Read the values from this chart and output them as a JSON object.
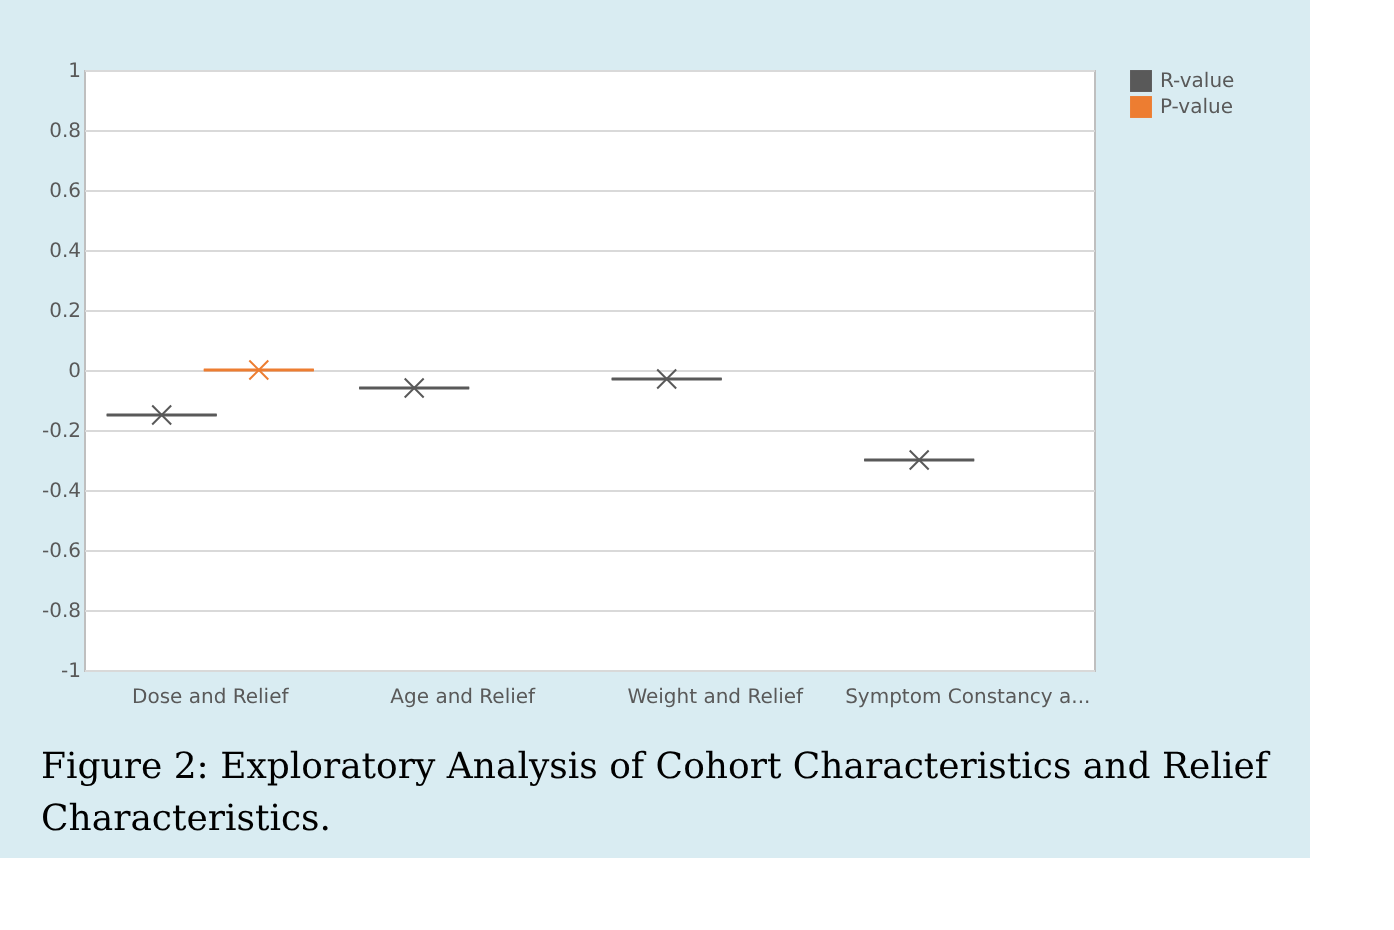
{
  "chart_data": {
    "type": "box",
    "categories": [
      "Dose and Relief",
      "Age and Relief",
      "Weight and Relief",
      "Symptom Constancy a..."
    ],
    "series": [
      {
        "name": "R-value",
        "color": "#595959",
        "boxes": [
          {
            "low": -0.15,
            "q1": -0.15,
            "median": -0.15,
            "q3": -0.15,
            "high": -0.15,
            "mean": -0.15
          },
          {
            "low": -0.06,
            "q1": -0.06,
            "median": -0.06,
            "q3": -0.06,
            "high": -0.06,
            "mean": -0.06
          },
          {
            "low": -0.03,
            "q1": -0.03,
            "median": -0.03,
            "q3": -0.03,
            "high": -0.03,
            "mean": -0.03
          },
          {
            "low": -0.3,
            "q1": -0.3,
            "median": -0.3,
            "q3": -0.3,
            "high": -0.3,
            "mean": -0.3
          }
        ]
      },
      {
        "name": "P-value",
        "color": "#ed7d31",
        "boxes": [
          {
            "low": 0,
            "q1": 0,
            "median": 0,
            "q3": 0,
            "high": 0,
            "mean": 0
          },
          null,
          null,
          null
        ]
      }
    ],
    "ylim": [
      -1,
      1
    ],
    "yticks": [
      -1,
      -0.8,
      -0.6,
      -0.4,
      -0.2,
      0,
      0.2,
      0.4,
      0.6,
      0.8,
      1
    ],
    "grid": "y",
    "legend": "right",
    "annotations": [
      "Figure 2: Exploratory Analysis of Cohort Characteristics and Relief Characteristics."
    ]
  }
}
